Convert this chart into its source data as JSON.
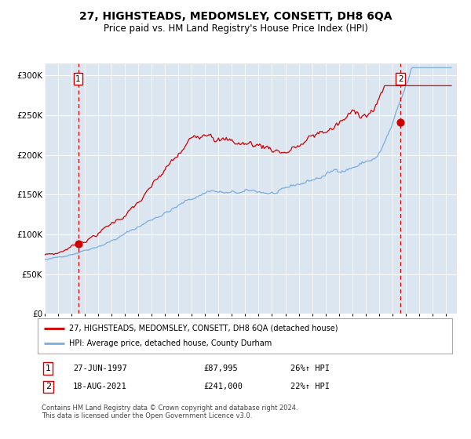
{
  "title": "27, HIGHSTEADS, MEDOMSLEY, CONSETT, DH8 6QA",
  "subtitle": "Price paid vs. HM Land Registry's House Price Index (HPI)",
  "bg_color": "#dce6f1",
  "fig_bg_color": "#ffffff",
  "red_line_color": "#cc0000",
  "blue_line_color": "#7aace0",
  "yticks": [
    0,
    50000,
    100000,
    150000,
    200000,
    250000,
    300000
  ],
  "ytick_labels": [
    "£0",
    "£50K",
    "£100K",
    "£150K",
    "£200K",
    "£250K",
    "£300K"
  ],
  "xlim_start": 1995.0,
  "xlim_end": 2025.83,
  "ylim": [
    0,
    315000
  ],
  "legend1": "27, HIGHSTEADS, MEDOMSLEY, CONSETT, DH8 6QA (detached house)",
  "legend2": "HPI: Average price, detached house, County Durham",
  "sale1_year": 1997.5,
  "sale1_value": 87995,
  "sale2_year": 2021.62,
  "sale2_value": 241000,
  "footnote": "Contains HM Land Registry data © Crown copyright and database right 2024.\nThis data is licensed under the Open Government Licence v3.0."
}
